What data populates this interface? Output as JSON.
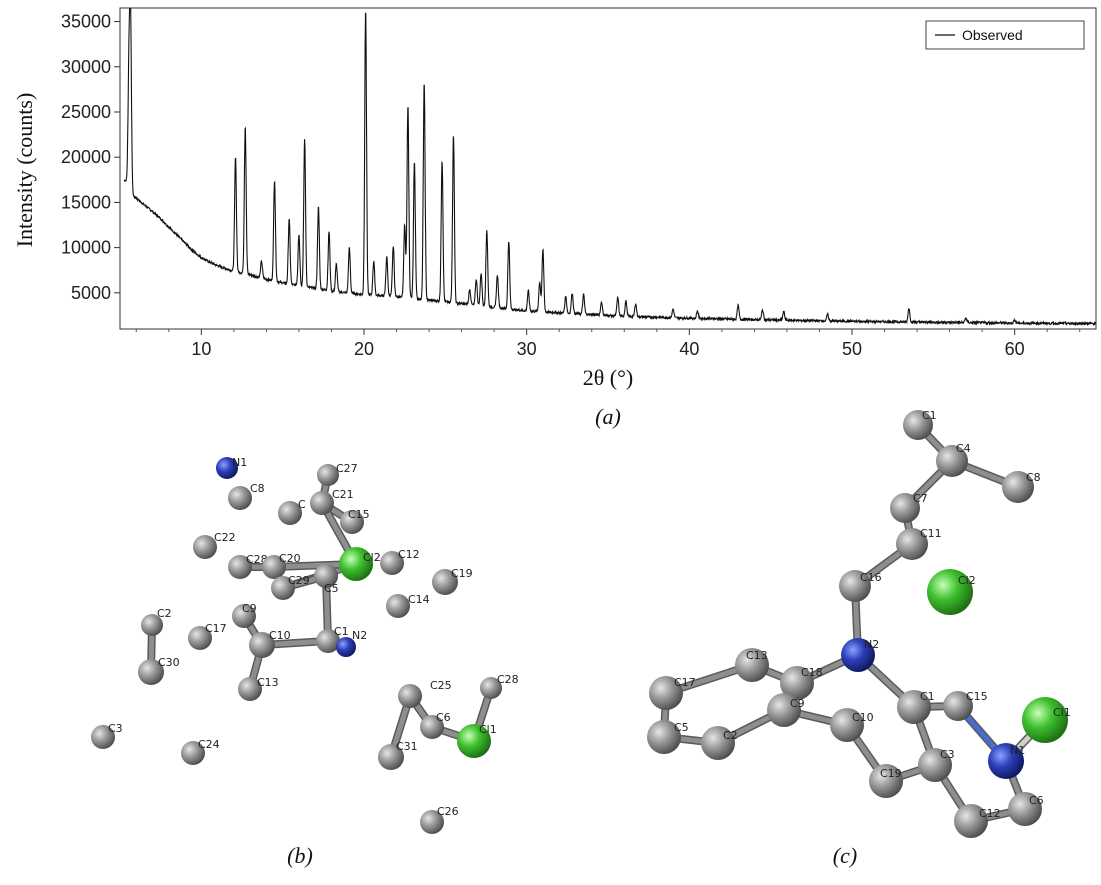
{
  "chart_data": {
    "type": "line",
    "title": "",
    "xlabel": "2θ (°)",
    "ylabel": "Intensity (counts)",
    "xlim": [
      5,
      65
    ],
    "ylim": [
      1000,
      36500
    ],
    "xticks": [
      10,
      20,
      30,
      40,
      50,
      60
    ],
    "yticks": [
      5000,
      10000,
      15000,
      20000,
      25000,
      30000,
      35000
    ],
    "legend": "top-right",
    "grid": false,
    "series": [
      {
        "name": "Observed",
        "color": "#111111",
        "background": [
          [
            5.2,
            17500
          ],
          [
            5.5,
            17300
          ],
          [
            5.7,
            15800
          ],
          [
            6.0,
            15500
          ],
          [
            6.5,
            14700
          ],
          [
            7.0,
            14000
          ],
          [
            7.5,
            13200
          ],
          [
            8.0,
            12300
          ],
          [
            8.5,
            11400
          ],
          [
            9.0,
            10500
          ],
          [
            9.5,
            9600
          ],
          [
            10.0,
            8900
          ],
          [
            10.5,
            8400
          ],
          [
            11.0,
            8000
          ],
          [
            11.5,
            7700
          ],
          [
            12.0,
            7400
          ],
          [
            13,
            7000
          ],
          [
            14,
            6500
          ],
          [
            15,
            6100
          ],
          [
            16,
            5800
          ],
          [
            17,
            5500
          ],
          [
            18,
            5200
          ],
          [
            19,
            5000
          ],
          [
            20,
            4800
          ],
          [
            21,
            4700
          ],
          [
            22,
            4600
          ],
          [
            23,
            4400
          ],
          [
            24,
            4200
          ],
          [
            25,
            4000
          ],
          [
            26,
            3800
          ],
          [
            27,
            3600
          ],
          [
            28,
            3400
          ],
          [
            29,
            3200
          ],
          [
            30,
            3000
          ],
          [
            32,
            2800
          ],
          [
            34,
            2600
          ],
          [
            36,
            2400
          ],
          [
            38,
            2300
          ],
          [
            40,
            2200
          ],
          [
            45,
            2000
          ],
          [
            50,
            1850
          ],
          [
            55,
            1750
          ],
          [
            60,
            1650
          ],
          [
            65,
            1600
          ]
        ],
        "peaks": [
          [
            5.65,
            35000
          ],
          [
            5.55,
            29500
          ],
          [
            12.1,
            20000
          ],
          [
            12.7,
            23500
          ],
          [
            13.7,
            8500
          ],
          [
            14.5,
            17500
          ],
          [
            15.4,
            13200
          ],
          [
            16.0,
            11500
          ],
          [
            16.35,
            22000
          ],
          [
            17.2,
            14500
          ],
          [
            17.85,
            11800
          ],
          [
            18.3,
            8200
          ],
          [
            19.1,
            10000
          ],
          [
            20.1,
            36500
          ],
          [
            20.6,
            8500
          ],
          [
            21.4,
            9000
          ],
          [
            21.8,
            10200
          ],
          [
            22.5,
            12500
          ],
          [
            22.7,
            25800
          ],
          [
            23.1,
            19500
          ],
          [
            23.7,
            28300
          ],
          [
            24.8,
            19700
          ],
          [
            25.5,
            22500
          ],
          [
            26.5,
            5400
          ],
          [
            26.9,
            6500
          ],
          [
            27.2,
            7200
          ],
          [
            27.55,
            12000
          ],
          [
            28.2,
            7000
          ],
          [
            28.9,
            10800
          ],
          [
            30.1,
            5200
          ],
          [
            30.8,
            6200
          ],
          [
            31.0,
            9800
          ],
          [
            32.4,
            4600
          ],
          [
            32.8,
            5000
          ],
          [
            33.5,
            4800
          ],
          [
            34.6,
            4000
          ],
          [
            35.6,
            4500
          ],
          [
            36.1,
            4100
          ],
          [
            36.7,
            3800
          ],
          [
            39.0,
            3200
          ],
          [
            40.5,
            3000
          ],
          [
            43.0,
            3600
          ],
          [
            44.5,
            3100
          ],
          [
            45.8,
            2900
          ],
          [
            48.5,
            2600
          ],
          [
            53.5,
            3300
          ],
          [
            57.0,
            2200
          ],
          [
            60.0,
            2000
          ]
        ]
      }
    ]
  },
  "captions": {
    "a": "(a)",
    "b": "(b)",
    "c": "(c)"
  },
  "colors": {
    "carbon": "#8c8c8c",
    "nitrogen": "#2c3fa8",
    "chlorine": "#3fbf2f",
    "bond": "#9a9a9a"
  },
  "molecule_b": {
    "atoms": [
      {
        "label": "N1",
        "el": "N"
      },
      {
        "label": "C8",
        "el": "C"
      },
      {
        "label": "C27",
        "el": "C"
      },
      {
        "label": "C21",
        "el": "C"
      },
      {
        "label": "C",
        "el": "C"
      },
      {
        "label": "C15",
        "el": "C"
      },
      {
        "label": "C22",
        "el": "C"
      },
      {
        "label": "C28",
        "el": "C"
      },
      {
        "label": "C20",
        "el": "C"
      },
      {
        "label": "Cl2",
        "el": "Cl"
      },
      {
        "label": "C12",
        "el": "C"
      },
      {
        "label": "C19",
        "el": "C"
      },
      {
        "label": "C29",
        "el": "C"
      },
      {
        "label": "C5",
        "el": "C"
      },
      {
        "label": "C14",
        "el": "C"
      },
      {
        "label": "C2",
        "el": "C"
      },
      {
        "label": "C9",
        "el": "C"
      },
      {
        "label": "C17",
        "el": "C"
      },
      {
        "label": "C10",
        "el": "C"
      },
      {
        "label": "C1",
        "el": "C"
      },
      {
        "label": "N2",
        "el": "N"
      },
      {
        "label": "C30",
        "el": "C"
      },
      {
        "label": "C13",
        "el": "C"
      },
      {
        "label": "C25",
        "el": "C"
      },
      {
        "label": "C28",
        "el": "C"
      },
      {
        "label": "C6",
        "el": "C"
      },
      {
        "label": "Cl1",
        "el": "Cl"
      },
      {
        "label": "C3",
        "el": "C"
      },
      {
        "label": "C24",
        "el": "C"
      },
      {
        "label": "C31",
        "el": "C"
      },
      {
        "label": "C26",
        "el": "C"
      }
    ]
  },
  "molecule_c": {
    "atoms": [
      {
        "label": "C1",
        "el": "C"
      },
      {
        "label": "C4",
        "el": "C"
      },
      {
        "label": "C8",
        "el": "C"
      },
      {
        "label": "C7",
        "el": "C"
      },
      {
        "label": "C11",
        "el": "C"
      },
      {
        "label": "C16",
        "el": "C"
      },
      {
        "label": "Cl2",
        "el": "Cl"
      },
      {
        "label": "N2",
        "el": "N"
      },
      {
        "label": "C13",
        "el": "C"
      },
      {
        "label": "C18",
        "el": "C"
      },
      {
        "label": "C17",
        "el": "C"
      },
      {
        "label": "C9",
        "el": "C"
      },
      {
        "label": "C10",
        "el": "C"
      },
      {
        "label": "C1",
        "el": "C"
      },
      {
        "label": "C15",
        "el": "C"
      },
      {
        "label": "Cl1",
        "el": "Cl"
      },
      {
        "label": "C5",
        "el": "C"
      },
      {
        "label": "C2",
        "el": "C"
      },
      {
        "label": "N1",
        "el": "N"
      },
      {
        "label": "C19",
        "el": "C"
      },
      {
        "label": "C3",
        "el": "C"
      },
      {
        "label": "C12",
        "el": "C"
      },
      {
        "label": "C6",
        "el": "C"
      }
    ]
  }
}
